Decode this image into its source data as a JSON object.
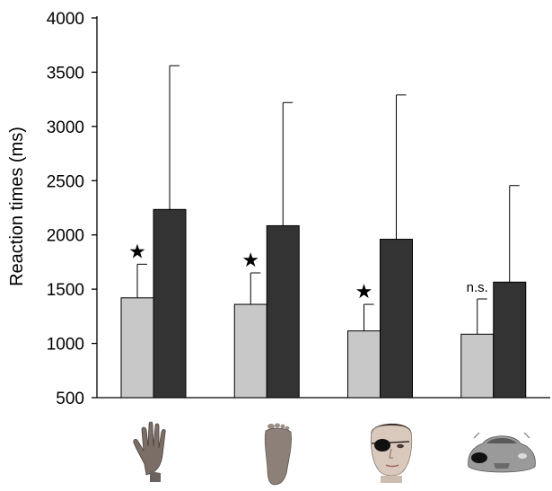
{
  "chart_data": {
    "type": "bar",
    "ylabel": "Reaction times (ms)",
    "xlabel": "",
    "ylim": [
      500,
      4000
    ],
    "yticks": [
      500,
      1000,
      1500,
      2000,
      2500,
      3000,
      3500,
      4000
    ],
    "grid": false,
    "categories": [
      "hand",
      "foot",
      "face",
      "car"
    ],
    "category_icons": [
      "hand-icon",
      "foot-icon",
      "face-icon",
      "car-icon"
    ],
    "series": [
      {
        "color": "#c8c8c8",
        "values": [
          1420,
          1360,
          1115,
          1085
        ],
        "error_upper": [
          1730,
          1650,
          1360,
          1410
        ]
      },
      {
        "color": "#333333",
        "values": [
          2235,
          2085,
          1960,
          1565
        ],
        "error_upper": [
          3560,
          3220,
          3290,
          2455
        ]
      }
    ],
    "annotations": [
      "★",
      "★",
      "★",
      "n.s."
    ]
  }
}
